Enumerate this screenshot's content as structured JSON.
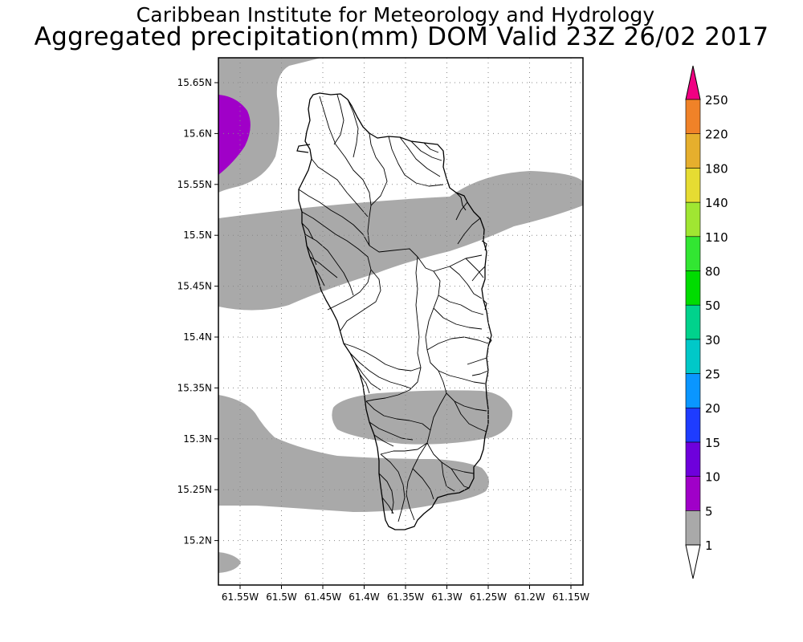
{
  "header": {
    "line1": "Caribbean Institute for Meteorology and Hydrology",
    "line2": "Aggregated precipitation(mm) DOM Valid 23Z 26/02 2017"
  },
  "map": {
    "region": "Dominica",
    "lon_ticks": [
      "61.55W",
      "61.5W",
      "61.45W",
      "61.4W",
      "61.35W",
      "61.3W",
      "61.25W",
      "61.2W",
      "61.15W"
    ],
    "lat_ticks": [
      "15.65N",
      "15.6N",
      "15.55N",
      "15.5N",
      "15.45N",
      "15.4N",
      "15.35N",
      "15.3N",
      "15.25N",
      "15.2N"
    ],
    "gridlines": "dotted",
    "colorbar": {
      "levels": [
        "1",
        "5",
        "10",
        "15",
        "20",
        "25",
        "30",
        "50",
        "80",
        "110",
        "140",
        "180",
        "220",
        "250"
      ],
      "colors": [
        "#a9a9a9",
        "#a000c8",
        "#6e00dc",
        "#1e3cff",
        "#0a96ff",
        "#00c8c8",
        "#00d28c",
        "#00dc00",
        "#32e632",
        "#a0e632",
        "#e6dc32",
        "#e6af2d",
        "#f08228",
        "#fa3c3c",
        "#f00082"
      ]
    },
    "fields": [
      {
        "name": "rain-1-5mm",
        "color": "#a9a9a9"
      },
      {
        "name": "rain-5-10mm",
        "color": "#a000c8"
      }
    ]
  }
}
